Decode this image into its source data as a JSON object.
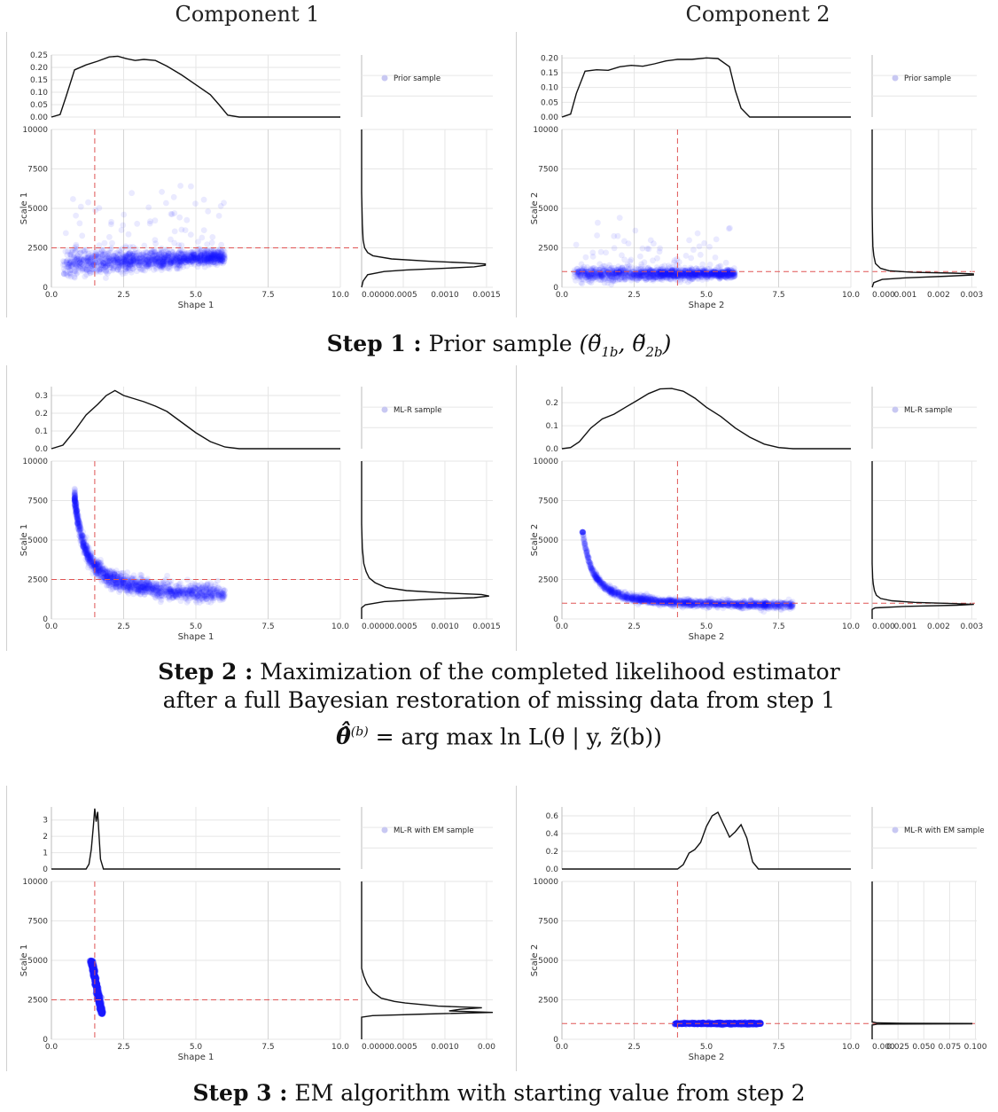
{
  "column_titles": [
    "Component 1",
    "Component 2"
  ],
  "captions": {
    "step1": {
      "bold": "Step 1 :",
      "text": "Prior sample"
    },
    "step2": {
      "bold": "Step 2 :",
      "line1": "Maximization of the completed likelihood estimator",
      "line2": "after a full Bayesian restoration of missing data from step 1",
      "equation": "= arg max ln L(θ | y, z̃(b))"
    },
    "step3": {
      "bold": "Step 3 :",
      "text": "EM algorithm with starting value from step 2"
    }
  },
  "colors": {
    "points": "#1a1aff",
    "density": "#111111",
    "refline": "#e05555",
    "legend_marker": "#c8c8f2"
  },
  "chart_data": [
    {
      "type": "scatter",
      "panel": "step1-component1",
      "legend": "Prior sample",
      "xlabel": "Shape  1",
      "ylabel": "Scale  1",
      "xlim": [
        0,
        10
      ],
      "ylim": [
        0,
        10000
      ],
      "xticks": [
        "0.0",
        "2.5",
        "5.0",
        "7.5",
        "10.0"
      ],
      "yticks": [
        "0",
        "2500",
        "5000",
        "7500",
        "10000"
      ],
      "top_density": {
        "ylim": [
          0,
          0.25
        ],
        "yticks": [
          "0.00",
          "0.05",
          "0.10",
          "0.15",
          "0.20",
          "0.25"
        ],
        "x": [
          0.0,
          0.3,
          0.5,
          0.8,
          1.2,
          1.6,
          2.0,
          2.3,
          2.6,
          2.9,
          3.2,
          3.6,
          4.0,
          4.5,
          5.0,
          5.5,
          5.8,
          6.1,
          6.5,
          8.0,
          10.0
        ],
        "y": [
          0.0,
          0.01,
          0.08,
          0.19,
          0.21,
          0.225,
          0.242,
          0.245,
          0.235,
          0.228,
          0.232,
          0.228,
          0.205,
          0.17,
          0.13,
          0.09,
          0.05,
          0.008,
          0.0,
          0.0,
          0.0
        ]
      },
      "right_density": {
        "xlim": [
          0,
          0.00175
        ],
        "xticks": [
          "0.0000",
          "0.0005",
          "0.0010",
          "0.0015"
        ],
        "y": [
          0,
          400,
          800,
          1000,
          1100,
          1200,
          1300,
          1400,
          1480,
          1550,
          1650,
          1800,
          2000,
          2200,
          2500,
          3000,
          4000,
          6000,
          10000
        ],
        "x": [
          0,
          2e-05,
          8e-05,
          0.0003,
          0.0006,
          0.0011,
          0.0015,
          0.00165,
          0.00165,
          0.0014,
          0.0009,
          0.0004,
          0.00015,
          8e-05,
          4e-05,
          2e-05,
          1e-05,
          0,
          0
        ]
      },
      "ref": {
        "x": 1.5,
        "y": 2500
      },
      "cloud": {
        "kind": "broad",
        "xmin": 0.4,
        "xmax": 6.0,
        "ymin": 500,
        "ymax": 8200,
        "n": 1400
      }
    },
    {
      "type": "scatter",
      "panel": "step1-component2",
      "legend": "Prior sample",
      "xlabel": "Shape  2",
      "ylabel": "Scale  2",
      "xlim": [
        0,
        10
      ],
      "ylim": [
        0,
        10000
      ],
      "xticks": [
        "0.0",
        "2.5",
        "5.0",
        "7.5",
        "10.0"
      ],
      "yticks": [
        "0",
        "2500",
        "5000",
        "7500",
        "10000"
      ],
      "top_density": {
        "ylim": [
          0,
          0.21
        ],
        "yticks": [
          "0.00",
          "0.05",
          "0.10",
          "0.15",
          "0.20"
        ],
        "x": [
          0.0,
          0.3,
          0.5,
          0.8,
          1.2,
          1.6,
          2.0,
          2.4,
          2.8,
          3.2,
          3.6,
          4.0,
          4.5,
          5.0,
          5.4,
          5.8,
          6.0,
          6.2,
          6.5,
          8.0,
          10.0
        ],
        "y": [
          0.0,
          0.01,
          0.08,
          0.155,
          0.16,
          0.158,
          0.17,
          0.175,
          0.172,
          0.18,
          0.19,
          0.195,
          0.195,
          0.2,
          0.198,
          0.17,
          0.09,
          0.03,
          0.0,
          0.0,
          0.0
        ]
      },
      "right_density": {
        "xlim": [
          0,
          0.0031
        ],
        "xticks": [
          "0.000",
          "0.001",
          "0.002",
          "0.003"
        ],
        "y": [
          0,
          300,
          500,
          600,
          700,
          780,
          850,
          900,
          950,
          1050,
          1200,
          1500,
          2000,
          2600,
          3500,
          5000,
          10000
        ],
        "x": [
          0,
          5e-05,
          0.0003,
          0.001,
          0.0022,
          0.003,
          0.003,
          0.0024,
          0.0012,
          0.0005,
          0.00025,
          0.0001,
          5e-05,
          2e-05,
          1e-05,
          0,
          0
        ]
      },
      "ref": {
        "x": 4.0,
        "y": 1000
      },
      "cloud": {
        "kind": "flat",
        "xmin": 0.4,
        "xmax": 6.0,
        "ymin": 300,
        "ymax": 5300,
        "n": 1400
      }
    },
    {
      "type": "scatter",
      "panel": "step2-component1",
      "legend": "ML-R sample",
      "xlabel": "Shape  1",
      "ylabel": "Scale  1",
      "xlim": [
        0,
        10
      ],
      "ylim": [
        0,
        10000
      ],
      "xticks": [
        "0.0",
        "2.5",
        "5.0",
        "7.5",
        "10.0"
      ],
      "yticks": [
        "0",
        "2500",
        "5000",
        "7500",
        "10000"
      ],
      "top_density": {
        "ylim": [
          0,
          0.35
        ],
        "yticks": [
          "0.0",
          "0.1",
          "0.2",
          "0.3"
        ],
        "x": [
          0.0,
          0.4,
          0.8,
          1.2,
          1.6,
          1.9,
          2.2,
          2.5,
          2.8,
          3.2,
          3.6,
          4.0,
          4.5,
          5.0,
          5.5,
          6.0,
          6.5,
          8.0,
          10.0
        ],
        "y": [
          0.0,
          0.02,
          0.1,
          0.19,
          0.25,
          0.3,
          0.328,
          0.3,
          0.285,
          0.265,
          0.24,
          0.21,
          0.15,
          0.09,
          0.04,
          0.01,
          0.0,
          0.0,
          0.0
        ]
      },
      "right_density": {
        "xlim": [
          0,
          0.00175
        ],
        "xticks": [
          "0.0000",
          "0.0005",
          "0.0010",
          "0.0015"
        ],
        "y": [
          0,
          700,
          900,
          1100,
          1250,
          1350,
          1450,
          1550,
          1650,
          1800,
          2000,
          2300,
          2600,
          3000,
          3500,
          4500,
          6000,
          10000
        ],
        "x": [
          0,
          0,
          5e-05,
          0.0003,
          0.0009,
          0.0015,
          0.0017,
          0.0016,
          0.0011,
          0.0006,
          0.00032,
          0.00018,
          0.0001,
          6e-05,
          3e-05,
          1e-05,
          0,
          0
        ]
      },
      "ref": {
        "x": 1.5,
        "y": 2500
      },
      "cloud": {
        "kind": "curve",
        "xmin": 0.8,
        "xmax": 6.0,
        "ymin": 1000,
        "ymax": 9500,
        "n": 1400
      }
    },
    {
      "type": "scatter",
      "panel": "step2-component2",
      "legend": "ML-R sample",
      "xlabel": "Shape  2",
      "ylabel": "Scale  2",
      "xlim": [
        0,
        10
      ],
      "ylim": [
        0,
        10000
      ],
      "xticks": [
        "0.0",
        "2.5",
        "5.0",
        "7.5",
        "10.0"
      ],
      "yticks": [
        "0",
        "2500",
        "5000",
        "7500",
        "10000"
      ],
      "top_density": {
        "ylim": [
          0,
          0.27
        ],
        "yticks": [
          "0.0",
          "0.1",
          "0.2"
        ],
        "x": [
          0.0,
          0.3,
          0.6,
          1.0,
          1.4,
          1.8,
          2.2,
          2.6,
          3.0,
          3.4,
          3.8,
          4.2,
          4.6,
          5.0,
          5.5,
          6.0,
          6.5,
          7.0,
          7.5,
          8.0,
          10.0
        ],
        "y": [
          0.0,
          0.005,
          0.03,
          0.09,
          0.13,
          0.15,
          0.18,
          0.21,
          0.24,
          0.26,
          0.262,
          0.25,
          0.22,
          0.18,
          0.14,
          0.09,
          0.05,
          0.02,
          0.005,
          0.0,
          0.0
        ]
      },
      "right_density": {
        "xlim": [
          0,
          0.0037
        ],
        "xticks": [
          "0.000",
          "0.001",
          "0.002",
          "0.003"
        ],
        "y": [
          0,
          600,
          700,
          800,
          870,
          920,
          980,
          1050,
          1150,
          1300,
          1500,
          1800,
          2200,
          2600,
          3500,
          10000
        ],
        "x": [
          0,
          0,
          0.0001,
          0.0012,
          0.003,
          0.0036,
          0.0028,
          0.0015,
          0.0007,
          0.0003,
          0.00015,
          8e-05,
          4e-05,
          2e-05,
          0,
          0
        ]
      },
      "ref": {
        "x": 4.0,
        "y": 1000
      },
      "cloud": {
        "kind": "curve2",
        "xmin": 0.7,
        "xmax": 8.0,
        "ymin": 700,
        "ymax": 5500,
        "n": 1400
      }
    },
    {
      "type": "scatter",
      "panel": "step3-component1",
      "legend": "ML-R with EM sample",
      "xlabel": "Shape  1",
      "ylabel": "Scale  1",
      "xlim": [
        0,
        10
      ],
      "ylim": [
        0,
        10000
      ],
      "xticks": [
        "0.0",
        "2.5",
        "5.0",
        "7.5",
        "10.0"
      ],
      "yticks": [
        "0",
        "2500",
        "5000",
        "7500",
        "10000"
      ],
      "top_density": {
        "ylim": [
          0,
          3.8
        ],
        "yticks": [
          "0",
          "1",
          "2",
          "3"
        ],
        "x": [
          0.0,
          1.2,
          1.3,
          1.38,
          1.45,
          1.5,
          1.55,
          1.6,
          1.65,
          1.7,
          1.8,
          2.0,
          10.0
        ],
        "y": [
          0.0,
          0.0,
          0.3,
          1.2,
          2.6,
          3.7,
          2.9,
          3.5,
          2.0,
          0.6,
          0.0,
          0.0,
          0.0
        ]
      },
      "right_density": {
        "xlim": [
          0,
          0.0012
        ],
        "xticks": [
          "0.0000",
          "0.0005",
          "0.0010",
          "0.00"
        ],
        "y": [
          0,
          1400,
          1500,
          1600,
          1700,
          1800,
          1900,
          2000,
          2100,
          2200,
          2300,
          2400,
          2600,
          3000,
          3500,
          4000,
          4500,
          10000
        ],
        "x": [
          0,
          0,
          0.0001,
          0.0006,
          0.0012,
          0.0008,
          0.0009,
          0.0011,
          0.0007,
          0.00055,
          0.0004,
          0.0003,
          0.00018,
          0.0001,
          5e-05,
          2e-05,
          0,
          0
        ]
      },
      "ref": {
        "x": 1.5,
        "y": 2500
      },
      "cloud": {
        "kind": "band",
        "xmin": 1.3,
        "xmax": 1.75,
        "ymin": 1600,
        "ymax": 5000,
        "n": 700
      }
    },
    {
      "type": "scatter",
      "panel": "step3-component2",
      "legend": "ML-R with EM sample",
      "xlabel": "Shape  2",
      "ylabel": "Scale  2",
      "xlim": [
        0,
        10
      ],
      "ylim": [
        0,
        10000
      ],
      "xticks": [
        "0.0",
        "2.5",
        "5.0",
        "7.5",
        "10.0"
      ],
      "yticks": [
        "0",
        "2500",
        "5000",
        "7500",
        "10000"
      ],
      "top_density": {
        "ylim": [
          0,
          0.7
        ],
        "yticks": [
          "0.0",
          "0.2",
          "0.4",
          "0.6"
        ],
        "x": [
          0.0,
          4.0,
          4.2,
          4.4,
          4.6,
          4.8,
          5.0,
          5.2,
          5.4,
          5.6,
          5.8,
          6.0,
          6.2,
          6.4,
          6.6,
          6.8,
          10.0
        ],
        "y": [
          0.0,
          0.0,
          0.05,
          0.18,
          0.22,
          0.3,
          0.48,
          0.6,
          0.64,
          0.5,
          0.36,
          0.42,
          0.5,
          0.35,
          0.08,
          0.0,
          0.0
        ]
      },
      "right_density": {
        "xlim": [
          0,
          0.105
        ],
        "xticks": [
          "0.000",
          "0.025",
          "0.050",
          "0.075",
          "0.100"
        ],
        "y": [
          0,
          900,
          960,
          985,
          1000,
          1015,
          1040,
          1100,
          10000
        ],
        "x": [
          0,
          0,
          0.005,
          0.1,
          0.1,
          0.03,
          0.005,
          0,
          0
        ]
      },
      "ref": {
        "x": 4.0,
        "y": 1000
      },
      "cloud": {
        "kind": "line",
        "xmin": 3.9,
        "xmax": 6.9,
        "ymin": 980,
        "ymax": 1020,
        "n": 600
      }
    }
  ]
}
